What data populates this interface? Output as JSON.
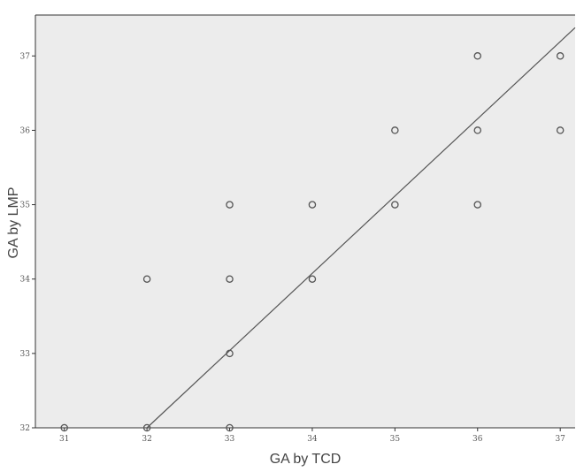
{
  "chart_data": {
    "type": "scatter",
    "title": "",
    "xlabel": "GA by TCD",
    "ylabel": "GA by LMP",
    "xlim": [
      30.65,
      37.18
    ],
    "ylim": [
      32,
      37.55
    ],
    "xticks": [
      31,
      32,
      33,
      34,
      35,
      36,
      37
    ],
    "xtick_labels": [
      "31",
      "32",
      "33",
      "34",
      "35",
      "36",
      "37"
    ],
    "yticks": [
      32,
      33,
      34,
      35,
      36,
      37
    ],
    "ytick_labels": [
      "32",
      "33",
      "34",
      "35",
      "36",
      "37"
    ],
    "grid": false,
    "points": [
      {
        "x": 31,
        "y": 32
      },
      {
        "x": 32,
        "y": 32
      },
      {
        "x": 32,
        "y": 34
      },
      {
        "x": 33,
        "y": 32
      },
      {
        "x": 33,
        "y": 33
      },
      {
        "x": 33,
        "y": 34
      },
      {
        "x": 33,
        "y": 35
      },
      {
        "x": 34,
        "y": 34
      },
      {
        "x": 34,
        "y": 35
      },
      {
        "x": 35,
        "y": 35
      },
      {
        "x": 35,
        "y": 36
      },
      {
        "x": 36,
        "y": 35
      },
      {
        "x": 36,
        "y": 36
      },
      {
        "x": 36,
        "y": 37
      },
      {
        "x": 37,
        "y": 36
      },
      {
        "x": 37,
        "y": 37
      }
    ],
    "fit_line": {
      "x": [
        32,
        37.18
      ],
      "y": [
        32,
        37.38
      ]
    },
    "colors": {
      "plot_background": "#ececec",
      "marker": "#555555",
      "line": "#555555",
      "axis": "#333333"
    }
  }
}
